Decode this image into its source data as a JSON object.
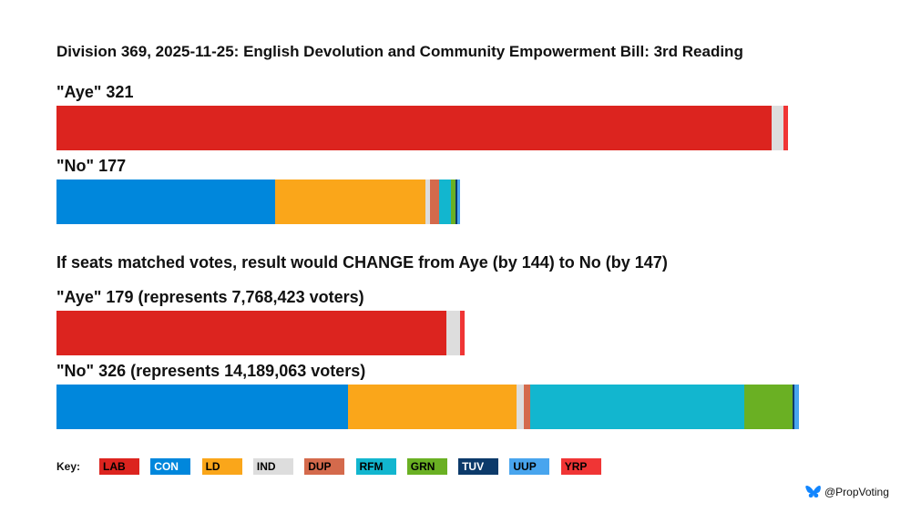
{
  "title": "Division 369, 2025-11-25: English Devolution and Community Empowerment Bill: 3rd Reading",
  "headline": "If seats matched votes, result would CHANGE from Aye (by 144) to No (by 147)",
  "credit": "@PropVoting",
  "key_label": "Key:",
  "parties": [
    {
      "code": "LAB",
      "color": "#dc241f",
      "text": "#000000"
    },
    {
      "code": "CON",
      "color": "#0087dc",
      "text": "#ffffff"
    },
    {
      "code": "LD",
      "color": "#faa61a",
      "text": "#000000"
    },
    {
      "code": "IND",
      "color": "#dddddd",
      "text": "#000000"
    },
    {
      "code": "DUP",
      "color": "#d46a4c",
      "text": "#000000"
    },
    {
      "code": "RFM",
      "color": "#12b6cf",
      "text": "#000000"
    },
    {
      "code": "GRN",
      "color": "#6ab023",
      "text": "#000000"
    },
    {
      "code": "TUV",
      "color": "#0c3a6a",
      "text": "#ffffff"
    },
    {
      "code": "UUP",
      "color": "#48a5ee",
      "text": "#000000"
    },
    {
      "code": "YRP",
      "color": "#f03535",
      "text": "#000000"
    }
  ],
  "chart_data": {
    "type": "bar",
    "orientation": "horizontal-stacked",
    "bars": [
      {
        "label": "\"Aye\" 321",
        "segments": [
          {
            "party": "LAB",
            "value": 314
          },
          {
            "party": "IND",
            "value": 5
          },
          {
            "party": "YRP",
            "value": 2
          }
        ]
      },
      {
        "label": "\"No\" 177",
        "segments": [
          {
            "party": "CON",
            "value": 96
          },
          {
            "party": "LD",
            "value": 66
          },
          {
            "party": "IND",
            "value": 2
          },
          {
            "party": "DUP",
            "value": 4
          },
          {
            "party": "RFM",
            "value": 5
          },
          {
            "party": "GRN",
            "value": 2
          },
          {
            "party": "TUV",
            "value": 1
          },
          {
            "party": "UUP",
            "value": 1
          }
        ]
      },
      {
        "label": "\"Aye\" 179 (represents 7,768,423 voters)",
        "segments": [
          {
            "party": "LAB",
            "value": 171
          },
          {
            "party": "IND",
            "value": 6
          },
          {
            "party": "YRP",
            "value": 2
          }
        ]
      },
      {
        "label": "\"No\" 326 (represents 14,189,063 voters)",
        "segments": [
          {
            "party": "CON",
            "value": 128
          },
          {
            "party": "LD",
            "value": 74
          },
          {
            "party": "IND",
            "value": 3
          },
          {
            "party": "DUP",
            "value": 3
          },
          {
            "party": "RFM",
            "value": 94
          },
          {
            "party": "GRN",
            "value": 21
          },
          {
            "party": "TUV",
            "value": 1
          },
          {
            "party": "UUP",
            "value": 2
          }
        ]
      }
    ]
  }
}
